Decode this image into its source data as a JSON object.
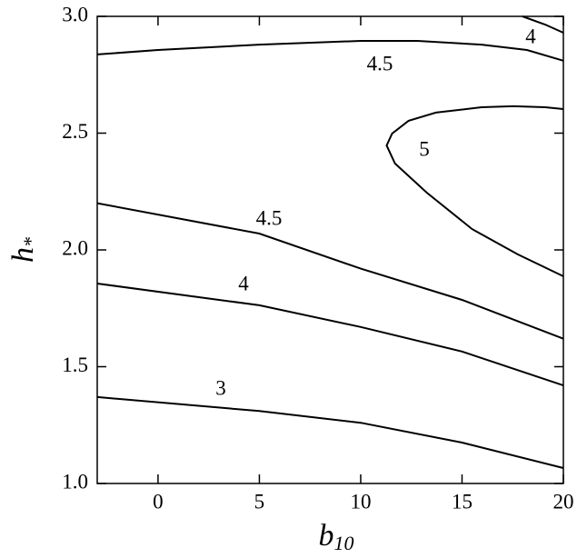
{
  "chart_data": {
    "type": "contour",
    "xlabel": {
      "text": "b",
      "sub": "10"
    },
    "ylabel": {
      "text": "h",
      "sub": "*"
    },
    "xlim": [
      -3,
      20
    ],
    "ylim": [
      1.0,
      3.0
    ],
    "xticks": [
      0,
      5,
      10,
      15,
      20
    ],
    "yticks": [
      {
        "value": 1.0,
        "label": "1.0"
      },
      1.5,
      {
        "value": 2.0,
        "label": "2.0"
      },
      2.5,
      {
        "value": 3.0,
        "label": "3.0"
      }
    ],
    "color": "#000000",
    "series": [
      {
        "name": "4",
        "x": [
          17.98,
          19.1,
          20
        ],
        "y": [
          3.0,
          2.965,
          2.93
        ]
      },
      {
        "name": "4.5",
        "x": [
          -3,
          0,
          5,
          10,
          12.8,
          15.96,
          18.2,
          20
        ],
        "y": [
          2.837,
          2.856,
          2.879,
          2.895,
          2.895,
          2.879,
          2.856,
          2.81
        ]
      },
      {
        "name": "5",
        "x": [
          20,
          17.75,
          15.5,
          13.26,
          11.69,
          11.28,
          11.55,
          12.36,
          13.71,
          15.96,
          17.53,
          19.1,
          20
        ],
        "y": [
          1.887,
          1.981,
          2.089,
          2.245,
          2.37,
          2.447,
          2.498,
          2.553,
          2.588,
          2.611,
          2.615,
          2.611,
          2.603
        ]
      },
      {
        "name": "4.5",
        "x": [
          -3,
          5,
          10,
          15,
          20
        ],
        "y": [
          2.2,
          2.07,
          1.92,
          1.786,
          1.62
        ]
      },
      {
        "name": "4",
        "x": [
          -3,
          5,
          10,
          15,
          20
        ],
        "y": [
          1.856,
          1.763,
          1.67,
          1.565,
          1.42
        ]
      },
      {
        "name": "3",
        "x": [
          -3,
          5,
          10,
          15,
          20
        ],
        "y": [
          1.37,
          1.31,
          1.26,
          1.175,
          1.066
        ]
      }
    ]
  }
}
